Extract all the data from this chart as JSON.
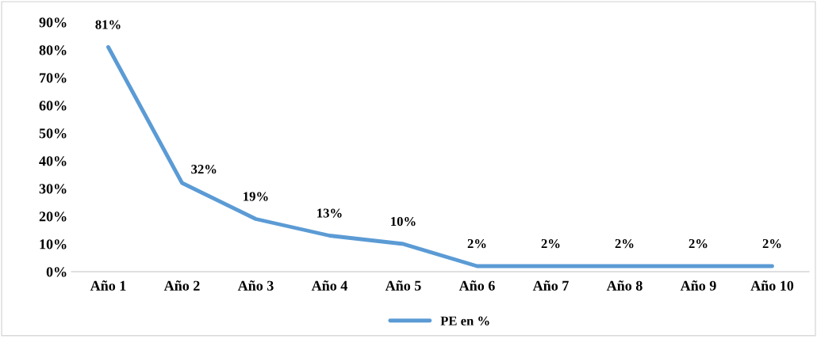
{
  "chart_data": {
    "type": "line",
    "categories": [
      "Año 1",
      "Año 2",
      "Año 3",
      "Año 4",
      "Año 5",
      "Año 6",
      "Año 7",
      "Año 8",
      "Año 9",
      "Año 10"
    ],
    "series": [
      {
        "name": "PE en %",
        "color": "#5b9bd5",
        "values": [
          81,
          32,
          19,
          13,
          10,
          2,
          2,
          2,
          2,
          2
        ],
        "value_labels": [
          "81%",
          "32%",
          "19%",
          "13%",
          "10%",
          "2%",
          "2%",
          "2%",
          "2%",
          "2%"
        ]
      }
    ],
    "ylim": [
      0,
      90
    ],
    "yticks": [
      {
        "value": 0,
        "label": "0%"
      },
      {
        "value": 10,
        "label": "10%"
      },
      {
        "value": 20,
        "label": "20%"
      },
      {
        "value": 30,
        "label": "30%"
      },
      {
        "value": 40,
        "label": "40%"
      },
      {
        "value": 50,
        "label": "50%"
      },
      {
        "value": 60,
        "label": "60%"
      },
      {
        "value": 70,
        "label": "70%"
      },
      {
        "value": 80,
        "label": "80%"
      },
      {
        "value": 90,
        "label": "90%"
      }
    ],
    "grid": false,
    "legend": "bottom",
    "marker": "none",
    "line_style": "solid"
  }
}
